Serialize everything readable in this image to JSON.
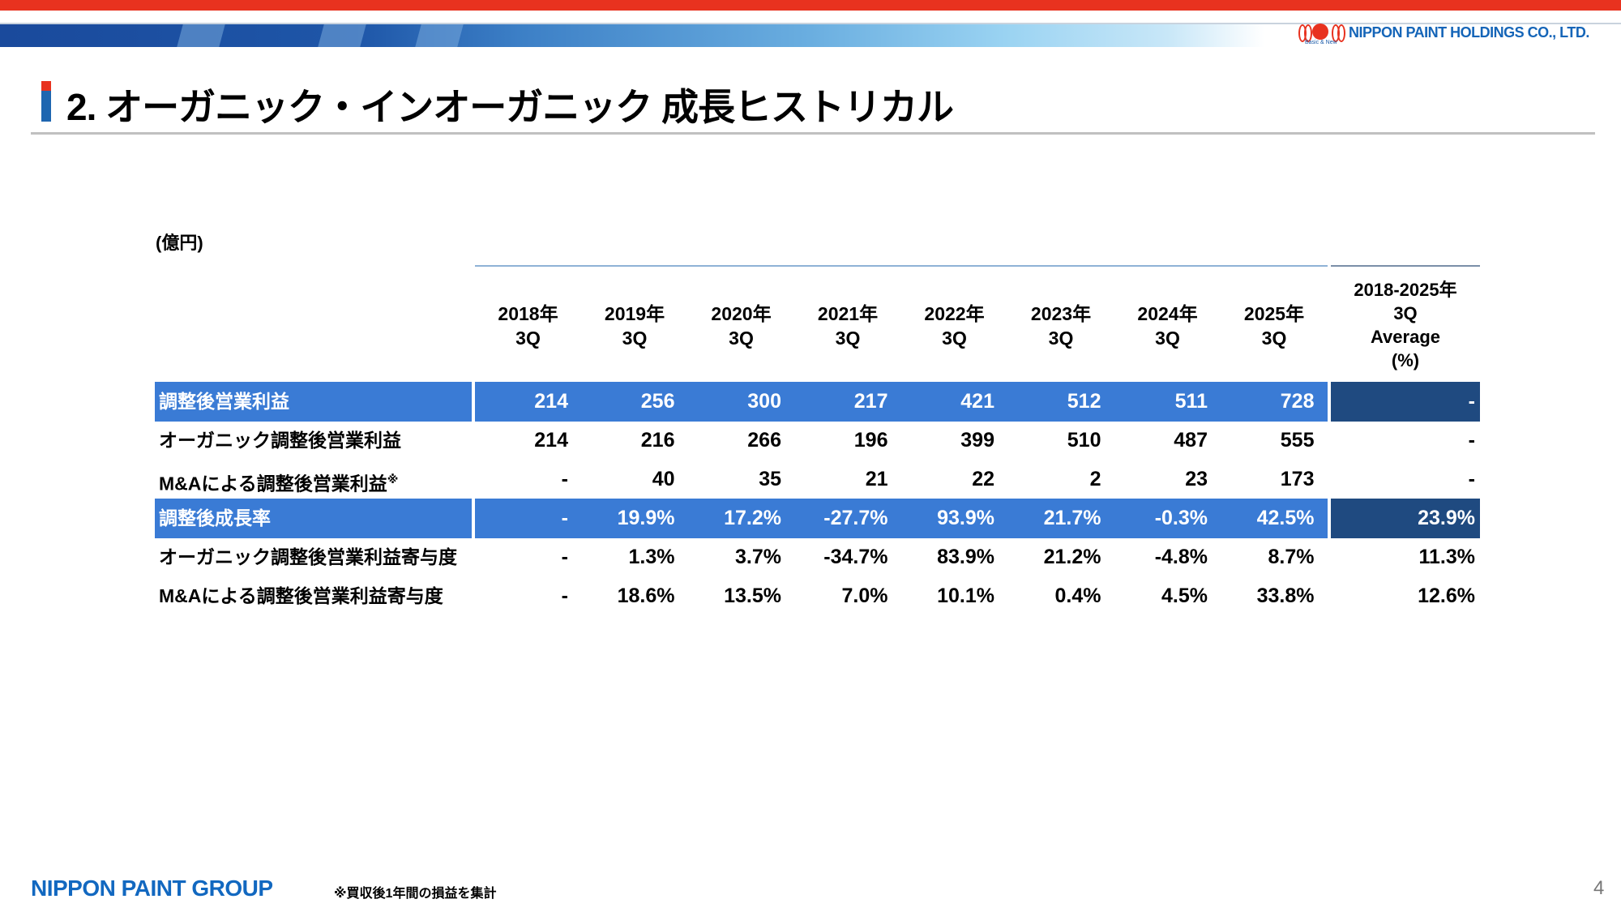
{
  "header": {
    "company_logo_text": "NIPPON PAINT HOLDINGS CO., LTD.",
    "logo_tagline": "Basic & New",
    "brand_colors": {
      "red": "#e8321f",
      "blue": "#1565b8"
    }
  },
  "title": "2. オーガニック・インオーガニック 成長ヒストリカル",
  "unit": "(億円)",
  "table": {
    "columns": [
      {
        "year": "2018年",
        "q": "3Q"
      },
      {
        "year": "2019年",
        "q": "3Q"
      },
      {
        "year": "2020年",
        "q": "3Q"
      },
      {
        "year": "2021年",
        "q": "3Q"
      },
      {
        "year": "2022年",
        "q": "3Q"
      },
      {
        "year": "2023年",
        "q": "3Q"
      },
      {
        "year": "2024年",
        "q": "3Q"
      },
      {
        "year": "2025年",
        "q": "3Q"
      }
    ],
    "avg_header": [
      "2018-2025年",
      "3Q",
      "Average",
      "(%)"
    ],
    "rows": [
      {
        "label": "調整後営業利益",
        "note": "",
        "highlight": true,
        "values": [
          "214",
          "256",
          "300",
          "217",
          "421",
          "512",
          "511",
          "728"
        ],
        "avg": "-"
      },
      {
        "label": "オーガニック調整後営業利益",
        "note": "",
        "highlight": false,
        "values": [
          "214",
          "216",
          "266",
          "196",
          "399",
          "510",
          "487",
          "555"
        ],
        "avg": "-"
      },
      {
        "label": "M&Aによる調整後営業利益",
        "note": "※",
        "highlight": false,
        "values": [
          "-",
          "40",
          "35",
          "21",
          "22",
          "2",
          "23",
          "173"
        ],
        "avg": "-"
      },
      {
        "label": "調整後成長率",
        "note": "",
        "highlight": true,
        "values": [
          "-",
          "19.9%",
          "17.2%",
          "-27.7%",
          "93.9%",
          "21.7%",
          "-0.3%",
          "42.5%"
        ],
        "avg": "23.9%"
      },
      {
        "label": "オーガニック調整後営業利益寄与度",
        "note": "",
        "highlight": false,
        "values": [
          "-",
          "1.3%",
          "3.7%",
          "-34.7%",
          "83.9%",
          "21.2%",
          "-4.8%",
          "8.7%"
        ],
        "avg": "11.3%"
      },
      {
        "label": "M&Aによる調整後営業利益寄与度",
        "note": "",
        "highlight": false,
        "values": [
          "-",
          "18.6%",
          "13.5%",
          "7.0%",
          "10.1%",
          "0.4%",
          "4.5%",
          "33.8%"
        ],
        "avg": "12.6%"
      }
    ]
  },
  "footer": {
    "group_logo": "NIPPON PAINT GROUP",
    "footnote": "※買収後1年間の損益を集計",
    "page_number": "4"
  }
}
